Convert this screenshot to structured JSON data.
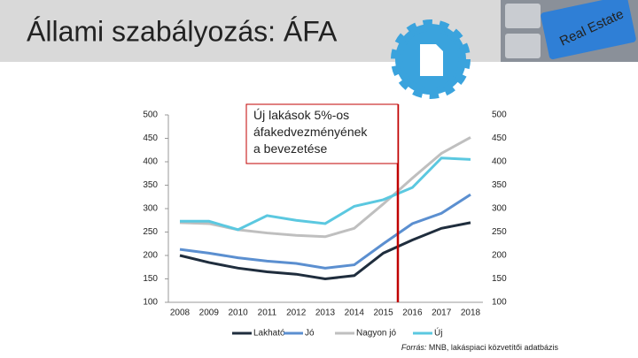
{
  "title": "Állami szabályozás: ÁFA",
  "image_text": "Real Estate",
  "chart_data": {
    "type": "line",
    "annotation": "Új lakások 5%-os áfakedvezményének a bevezetése",
    "categories": [
      "2008",
      "2009",
      "2010",
      "2011",
      "2012",
      "2013",
      "2014",
      "2015",
      "2016",
      "2017",
      "2018"
    ],
    "series": [
      {
        "name": "Lakható",
        "color": "#1f2d3d",
        "values": [
          200,
          185,
          173,
          165,
          160,
          150,
          157,
          205,
          233,
          258,
          270
        ]
      },
      {
        "name": "Jó",
        "color": "#5b8fd0",
        "values": [
          213,
          205,
          195,
          188,
          183,
          173,
          180,
          225,
          268,
          290,
          330
        ]
      },
      {
        "name": "Nagyon jó",
        "color": "#bfbfbf",
        "values": [
          270,
          268,
          255,
          248,
          243,
          240,
          258,
          310,
          365,
          418,
          452
        ]
      },
      {
        "name": "Új",
        "color": "#5bc8e0",
        "values": [
          273,
          273,
          255,
          285,
          275,
          268,
          305,
          319,
          345,
          408,
          405
        ]
      }
    ],
    "ylim": [
      100,
      500
    ],
    "yticks": [
      100,
      150,
      200,
      250,
      300,
      350,
      400,
      450,
      500
    ],
    "source_label": "Forrás:",
    "source_text": "MNB, lakáspiaci közvetítői adatbázis"
  }
}
